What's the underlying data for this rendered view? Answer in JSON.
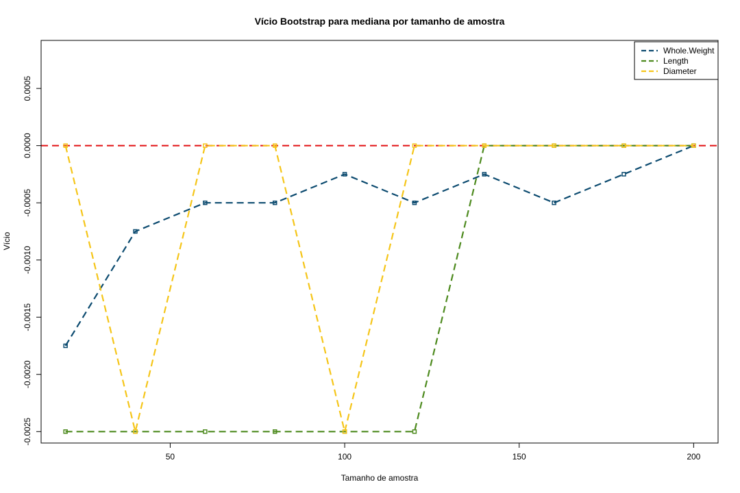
{
  "chart_data": {
    "type": "line",
    "title": "Vício Bootstrap para mediana por tamanho de amostra",
    "xlabel": "Tamanho de amostra",
    "ylabel": "Vício",
    "x": [
      20,
      40,
      60,
      80,
      100,
      120,
      140,
      160,
      180,
      200
    ],
    "xlim": [
      13,
      207
    ],
    "ylim": [
      -0.0026,
      0.00092
    ],
    "x_ticks": [
      50,
      100,
      150,
      200
    ],
    "x_tick_labels": [
      "50",
      "100",
      "150",
      "200"
    ],
    "y_ticks": [
      -0.0025,
      -0.002,
      -0.0015,
      -0.001,
      -0.0005,
      0,
      0.0005
    ],
    "y_tick_labels": [
      "-0.0025",
      "-0.0020",
      "-0.0015",
      "-0.0010",
      "-0.0005",
      "0.0000",
      "0.0005"
    ],
    "reference_line": {
      "y": 0,
      "color": "#e41a1c",
      "style": "dashed"
    },
    "legend_position": "top-right",
    "grid": false,
    "series": [
      {
        "name": "Whole.Weight",
        "color": "#0b4a6f",
        "values": [
          -0.00175,
          -0.00075,
          -0.0005,
          -0.0005,
          -0.00025,
          -0.0005,
          -0.00025,
          -0.0005,
          -0.00025,
          0
        ]
      },
      {
        "name": "Length",
        "color": "#4d8a1e",
        "values": [
          -0.0025,
          -0.0025,
          -0.0025,
          -0.0025,
          -0.0025,
          -0.0025,
          0,
          0,
          0,
          0
        ]
      },
      {
        "name": "Diameter",
        "color": "#f5c518",
        "values": [
          0,
          -0.0025,
          0,
          0,
          -0.0025,
          0,
          0,
          0,
          0,
          0
        ]
      }
    ]
  }
}
